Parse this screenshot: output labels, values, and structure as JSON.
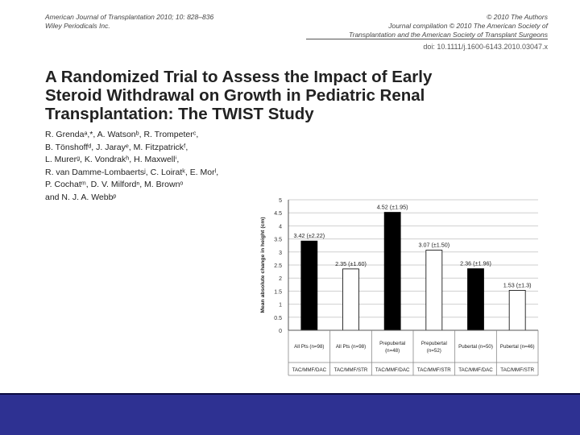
{
  "journal": {
    "left_line1": "American Journal of Transplantation 2010; 10: 828–836",
    "left_line2": "Wiley Periodicals Inc.",
    "right_line1": "© 2010 The Authors",
    "right_line2": "Journal compilation © 2010 The American Society of",
    "right_line3": "Transplantation and the American Society of Transplant Surgeons",
    "doi": "doi: 10.1111/j.1600-6143.2010.03047.x"
  },
  "title": {
    "line1": "A Randomized Trial to Assess the Impact of Early",
    "line2": "Steroid Withdrawal on Growth in Pediatric Renal",
    "line3": "Transplantation: The TWIST Study"
  },
  "authors": [
    "R. Grendaᵃ,*, A. Watsonᵇ, R. Trompeterᶜ,",
    "B. Tönshoffᵈ, J. Jarayᵉ, M. Fitzpatrickᶠ,",
    "L. Murerᵍ, K. Vondrakʰ, H. Maxwellⁱ,",
    "R. van Damme-Lombaertsʲ, C. Loiratᵏ, E. Morˡ,",
    "P. Cochatᵐ, D. V. Milfordⁿ, M. Brownᵒ",
    "and N. J. A. Webbᵖ"
  ],
  "colors": {
    "black_bar": "#000000",
    "white_bar": "#ffffff",
    "footer": "#2e3192"
  },
  "chart_data": {
    "type": "bar",
    "title": "",
    "xlabel": "",
    "ylabel": "Mean absolute change in height (cm)",
    "ylim": [
      0,
      5
    ],
    "yticks": [
      "0",
      "0.5",
      "1",
      "1.5",
      "2",
      "2.5",
      "3",
      "3.5",
      "4",
      "4.5",
      "5"
    ],
    "grid": true,
    "categories": [
      {
        "line1": "All Pts (n=98)",
        "line2": "",
        "regimen": "TAC/MMF/DAC"
      },
      {
        "line1": "All Pts (n=98)",
        "line2": "",
        "regimen": "TAC/MMF/STR"
      },
      {
        "line1": "Prepubertal",
        "line2": "(n=48)",
        "regimen": "TAC/MMF/DAC"
      },
      {
        "line1": "Prepubertal",
        "line2": "(n=52)",
        "regimen": "TAC/MMF/STR"
      },
      {
        "line1": "Pubertal (n=50)",
        "line2": "",
        "regimen": "TAC/MMF/DAC"
      },
      {
        "line1": "Pubertal (n=46)",
        "line2": "",
        "regimen": "TAC/MMF/STR"
      }
    ],
    "values": [
      3.42,
      2.35,
      4.52,
      3.07,
      2.36,
      1.53
    ],
    "fills": [
      "black",
      "white",
      "black",
      "white",
      "black",
      "white"
    ],
    "data_labels": [
      "3.42 (±2.22)",
      "2.35 (±1.60)",
      "4.52 (±1.95)",
      "3.07 (±1.50)",
      "2.36 (±1.96)",
      "1.53 (±1.3)"
    ]
  }
}
